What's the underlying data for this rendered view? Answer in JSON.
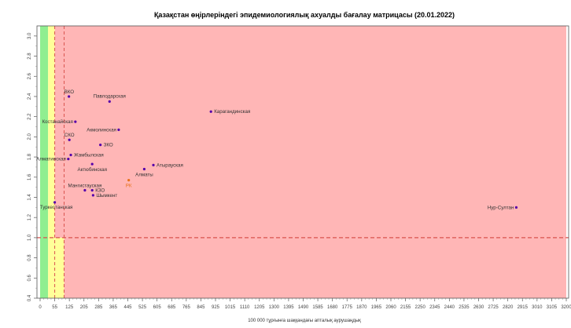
{
  "chart_data": {
    "type": "scatter",
    "title": "Қазақстан өңірлеріндегі эпидемиологиялық ахуалды бағалау матрицасы  (20.01.2022)",
    "xlabel": "100 000 тұрғынға шаққандағы апталық аурушаңдық",
    "ylabel": "",
    "xlim": [
      0,
      3200
    ],
    "ylim": [
      0.4,
      3.1
    ],
    "x_ticks": [
      0,
      55,
      125,
      205,
      285,
      365,
      445,
      525,
      605,
      685,
      765,
      845,
      925,
      1015,
      1110,
      1205,
      1300,
      1395,
      1490,
      1585,
      1680,
      1775,
      1870,
      1965,
      2060,
      2155,
      2250,
      2345,
      2440,
      2535,
      2630,
      2725,
      2820,
      2915,
      3010,
      3105,
      3200
    ],
    "y_ticks": [
      0.4,
      0.6,
      0.8,
      1.0,
      1.2,
      1.4,
      1.6,
      1.8,
      2.0,
      2.2,
      2.4,
      2.6,
      2.8,
      3.0
    ],
    "zones": [
      {
        "name": "green",
        "x": [
          0,
          30
        ],
        "color": "#90ee90"
      },
      {
        "name": "yellow",
        "x": [
          30,
          55
        ],
        "color": "#ffff99"
      },
      {
        "name": "red",
        "x": [
          55,
          3200
        ],
        "color": "#ffb6b6"
      }
    ],
    "yellow_strip": {
      "x": [
        55,
        100
      ],
      "y": [
        0.4,
        1.0
      ],
      "color": "#ffff99"
    },
    "reference_lines": {
      "vertical_x": [
        55,
        100
      ],
      "horizontal_y": 1.0,
      "color": "#d9534f"
    },
    "points": [
      {
        "label": "ВКО",
        "x": 123,
        "y": 2.4,
        "color": "#5500aa",
        "label_color": "#333333",
        "anchor": "start",
        "dx": -6,
        "dy": -4
      },
      {
        "label": "Павлодарская",
        "x": 345,
        "y": 2.35,
        "color": "#5500aa",
        "label_color": "#333333",
        "anchor": "middle",
        "dx": 0,
        "dy": -5
      },
      {
        "label": "Карагандинская",
        "x": 900,
        "y": 2.25,
        "color": "#5500aa",
        "label_color": "#333333",
        "anchor": "start",
        "dx": 4,
        "dy": 2
      },
      {
        "label": "Костанайская",
        "x": 158,
        "y": 2.15,
        "color": "#5500aa",
        "label_color": "#333333",
        "anchor": "end",
        "dx": -3,
        "dy": 2
      },
      {
        "label": "Акмолинская",
        "x": 395,
        "y": 2.07,
        "color": "#5500aa",
        "label_color": "#333333",
        "anchor": "end",
        "dx": -3,
        "dy": 2
      },
      {
        "label": "СКО",
        "x": 125,
        "y": 1.97,
        "color": "#5500aa",
        "label_color": "#333333",
        "anchor": "middle",
        "dx": 0,
        "dy": -4
      },
      {
        "label": "ЗКО",
        "x": 295,
        "y": 1.92,
        "color": "#5500aa",
        "label_color": "#333333",
        "anchor": "start",
        "dx": 4,
        "dy": 2
      },
      {
        "label": "Жамбылская",
        "x": 133,
        "y": 1.82,
        "color": "#5500aa",
        "label_color": "#333333",
        "anchor": "start",
        "dx": 4,
        "dy": 2
      },
      {
        "label": "Алматинская",
        "x": 120,
        "y": 1.78,
        "color": "#5500aa",
        "label_color": "#333333",
        "anchor": "end",
        "dx": -3,
        "dy": 2
      },
      {
        "label": "Актюбинская",
        "x": 250,
        "y": 1.73,
        "color": "#5500aa",
        "label_color": "#333333",
        "anchor": "middle",
        "dx": 0,
        "dy": 9
      },
      {
        "label": "Атырауская",
        "x": 585,
        "y": 1.72,
        "color": "#5500aa",
        "label_color": "#333333",
        "anchor": "start",
        "dx": 4,
        "dy": 2
      },
      {
        "label": "Алматы",
        "x": 535,
        "y": 1.68,
        "color": "#5500aa",
        "label_color": "#333333",
        "anchor": "middle",
        "dx": 0,
        "dy": 9
      },
      {
        "label": "РК",
        "x": 450,
        "y": 1.57,
        "color": "#e8721c",
        "label_color": "#e8721c",
        "anchor": "middle",
        "dx": 0,
        "dy": 9
      },
      {
        "label": "Мангистауская",
        "x": 210,
        "y": 1.47,
        "color": "#5500aa",
        "label_color": "#333333",
        "anchor": "middle",
        "dx": 0,
        "dy": -4
      },
      {
        "label": "КЗО",
        "x": 250,
        "y": 1.47,
        "color": "#5500aa",
        "label_color": "#333333",
        "anchor": "start",
        "dx": 4,
        "dy": 2
      },
      {
        "label": "Шымкент",
        "x": 255,
        "y": 1.42,
        "color": "#5500aa",
        "label_color": "#333333",
        "anchor": "start",
        "dx": 4,
        "dy": 2
      },
      {
        "label": "Туркестанская",
        "x": 55,
        "y": 1.35,
        "color": "#5500aa",
        "label_color": "#333333",
        "anchor": "middle",
        "dx": 2,
        "dy": 8
      },
      {
        "label": "Нур-Султан",
        "x": 2875,
        "y": 1.3,
        "color": "#5500aa",
        "label_color": "#333333",
        "anchor": "end",
        "dx": -3,
        "dy": 2
      }
    ]
  }
}
